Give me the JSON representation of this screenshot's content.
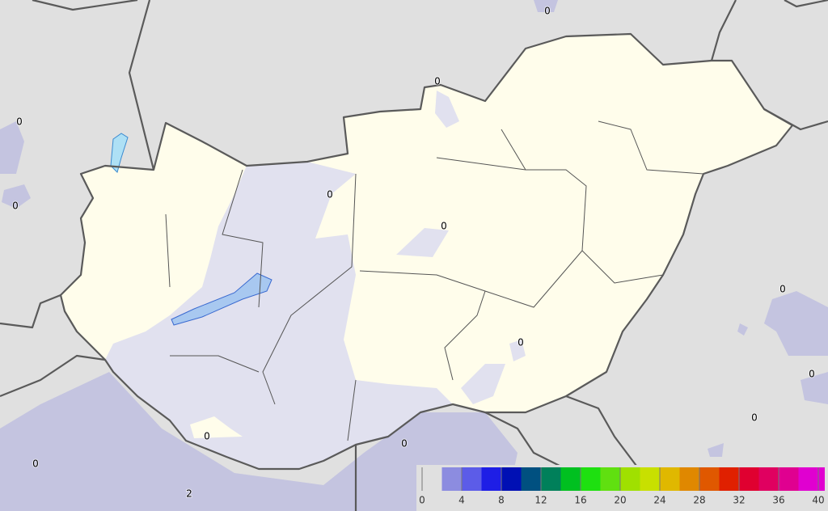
{
  "labels": [
    "0",
    "0",
    "0",
    "0",
    "0",
    "0",
    "0",
    "0",
    "0",
    "0",
    "0",
    "0",
    "0",
    "2"
  ],
  "colorbar": {
    "range": [
      0,
      40
    ],
    "ticks": [
      0,
      4,
      8,
      12,
      16,
      20,
      24,
      28,
      32,
      36,
      40
    ],
    "colors": [
      "none",
      "#8c8ce0",
      "#5c5ce8",
      "#1e1ee6",
      "#0010b4",
      "#005080",
      "#00805a",
      "#00c020",
      "#1ee010",
      "#60e010",
      "#a0e000",
      "#c8e000",
      "#e0b800",
      "#e08800",
      "#e05800",
      "#e02000",
      "#e00030",
      "#e00060",
      "#e00090",
      "#e000d0"
    ]
  }
}
